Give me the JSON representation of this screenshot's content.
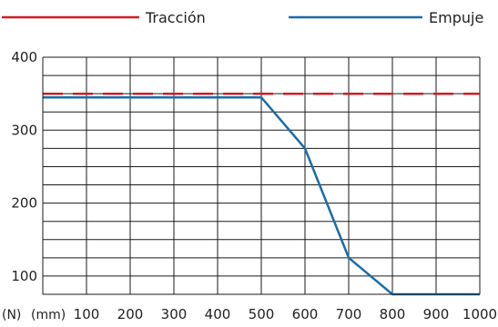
{
  "chart_data": {
    "type": "line",
    "title": "",
    "xlabel": "",
    "ylabel": "",
    "y_unit_label": "(N)",
    "x_unit_label": "(mm)",
    "xlim": [
      0,
      1000
    ],
    "ylim": [
      75,
      400
    ],
    "x_ticks": [
      100,
      200,
      300,
      400,
      500,
      600,
      700,
      800,
      900,
      1000
    ],
    "y_ticks": [
      100,
      200,
      300,
      400
    ],
    "grid": true,
    "legend_position": "top",
    "series": [
      {
        "name": "Tracción",
        "color": "#cc1f26",
        "line_style": "dashed",
        "x": [
          0,
          1000
        ],
        "y": [
          350,
          350
        ]
      },
      {
        "name": "Empuje",
        "color": "#1b6ca8",
        "line_style": "solid",
        "x": [
          0,
          500,
          600,
          700,
          800,
          1000
        ],
        "y": [
          345,
          345,
          275,
          125,
          75,
          75
        ]
      }
    ]
  }
}
